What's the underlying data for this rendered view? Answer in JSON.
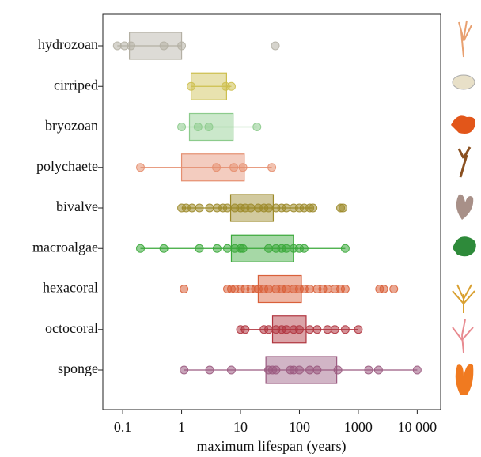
{
  "chart_data": {
    "type": "box",
    "x_label": "maximum lifespan (years)",
    "xlim": [
      0.046,
      25000
    ],
    "log_x": true,
    "xticks": [
      0.1,
      1,
      10,
      100,
      1000,
      {
        "value": 10000,
        "label": "10 000"
      }
    ],
    "series": [
      {
        "name": "hydrozoan",
        "color": "#b4b0a4",
        "box": [
          0.13,
          1.0
        ],
        "whisker": [
          0.081,
          1.0
        ],
        "points": [
          0.081,
          0.107,
          0.138,
          0.5,
          1.0,
          39
        ]
      },
      {
        "name": "cirriped",
        "color": "#cdbf4e",
        "box": [
          1.45,
          5.8
        ],
        "whisker": [
          1.45,
          7
        ],
        "points": [
          1.45,
          5.6,
          7
        ]
      },
      {
        "name": "bryozoan",
        "color": "#8ccb8c",
        "box": [
          1.36,
          7.5
        ],
        "whisker": [
          1.0,
          19
        ],
        "points": [
          1.0,
          1.9,
          2.9,
          19
        ]
      },
      {
        "name": "polychaete",
        "color": "#e58f70",
        "box": [
          1.0,
          11.6
        ],
        "whisker": [
          0.2,
          34
        ],
        "points": [
          0.2,
          3.9,
          7.7,
          11,
          34
        ]
      },
      {
        "name": "bivalve",
        "color": "#9c8a2a",
        "box": [
          6.8,
          36
        ],
        "whisker": [
          1,
          170
        ],
        "points": [
          1,
          1.2,
          1.5,
          2,
          3,
          4,
          5,
          6,
          8,
          10,
          12,
          15,
          20,
          25,
          30,
          40,
          50,
          60,
          80,
          100,
          120,
          150,
          170,
          500,
          550
        ]
      },
      {
        "name": "macroalgae",
        "color": "#3aa83a",
        "box": [
          7,
          79
        ],
        "whisker": [
          0.2,
          600
        ],
        "points": [
          0.2,
          0.5,
          2,
          4,
          6,
          8,
          10,
          11,
          30,
          40,
          50,
          60,
          80,
          100,
          120,
          600
        ]
      },
      {
        "name": "hexacoral",
        "color": "#d9603a",
        "box": [
          20,
          108
        ],
        "whisker": [
          6,
          600
        ],
        "points": [
          1.1,
          6,
          7,
          8,
          10,
          12,
          15,
          18,
          20,
          25,
          30,
          40,
          50,
          60,
          80,
          100,
          120,
          150,
          200,
          250,
          300,
          400,
          500,
          600,
          2300,
          2700,
          4000
        ]
      },
      {
        "name": "octocoral",
        "color": "#b0353f",
        "box": [
          35,
          130
        ],
        "whisker": [
          10,
          1000
        ],
        "points": [
          10,
          12,
          25,
          30,
          40,
          50,
          60,
          80,
          100,
          150,
          200,
          300,
          400,
          600,
          1000
        ]
      },
      {
        "name": "sponge",
        "color": "#9a5a80",
        "box": [
          27,
          430
        ],
        "whisker": [
          1.1,
          10000
        ],
        "points": [
          1.1,
          3,
          7,
          30,
          35,
          40,
          70,
          80,
          100,
          150,
          200,
          450,
          1500,
          2200,
          10000
        ]
      }
    ]
  }
}
